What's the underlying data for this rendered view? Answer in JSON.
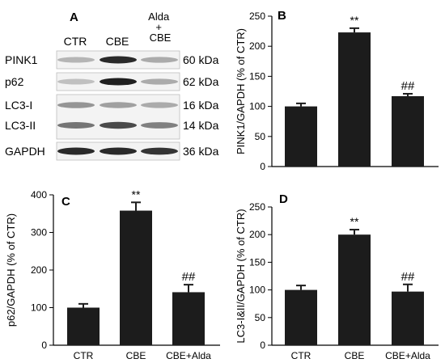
{
  "panel_a": {
    "letter": "A",
    "lanes": [
      "CTR",
      "CBE",
      "Alda\n+\nCBE"
    ],
    "blots": [
      {
        "protein": "PINK1",
        "size": "60 kDa",
        "band_intensity": [
          0.25,
          0.9,
          0.3
        ]
      },
      {
        "protein": "p62",
        "size": "62 kDa",
        "band_intensity": [
          0.2,
          0.95,
          0.3
        ]
      },
      {
        "protein": "LC3-I",
        "size": "16 kDa",
        "band_intensity": [
          0.4,
          0.35,
          0.3
        ]
      },
      {
        "protein": "LC3-II",
        "size": "14 kDa",
        "band_intensity": [
          0.55,
          0.75,
          0.5
        ]
      },
      {
        "protein": "GAPDH",
        "size": "36 kDa",
        "band_intensity": [
          0.9,
          0.9,
          0.85
        ]
      }
    ]
  },
  "chart_data": [
    {
      "panel": "B",
      "type": "bar",
      "categories": [
        "",
        "",
        ""
      ],
      "values": [
        100,
        223,
        117
      ],
      "errors": [
        5,
        7,
        4
      ],
      "significance": [
        "",
        "**",
        "##"
      ],
      "title": "",
      "xlabel": "",
      "ylabel": "PINK1/GAPDH (% of CTR)",
      "ylim": [
        0,
        250
      ],
      "yticks": [
        0,
        50,
        100,
        150,
        200,
        250
      ],
      "bar_color": "#1c1c1c"
    },
    {
      "panel": "C",
      "type": "bar",
      "categories": [
        "CTR",
        "CBE",
        "CBE+Alda"
      ],
      "values": [
        100,
        358,
        141
      ],
      "errors": [
        10,
        22,
        20
      ],
      "significance": [
        "",
        "**",
        "##"
      ],
      "title": "",
      "xlabel": "",
      "ylabel": "p62/GAPDH (% of CTR)",
      "ylim": [
        0,
        400
      ],
      "yticks": [
        0,
        100,
        200,
        300,
        400
      ],
      "bar_color": "#1c1c1c"
    },
    {
      "panel": "D",
      "type": "bar",
      "categories": [
        "CTR",
        "CBE",
        "CBE+Alda"
      ],
      "values": [
        100,
        200,
        97
      ],
      "errors": [
        8,
        9,
        13
      ],
      "significance": [
        "",
        "**",
        "##"
      ],
      "title": "",
      "xlabel": "",
      "ylabel": "LC3-I&II/GAPDH (% of CTR)",
      "ylim": [
        0,
        250
      ],
      "yticks": [
        0,
        50,
        100,
        150,
        200,
        250
      ],
      "bar_color": "#1c1c1c"
    }
  ]
}
